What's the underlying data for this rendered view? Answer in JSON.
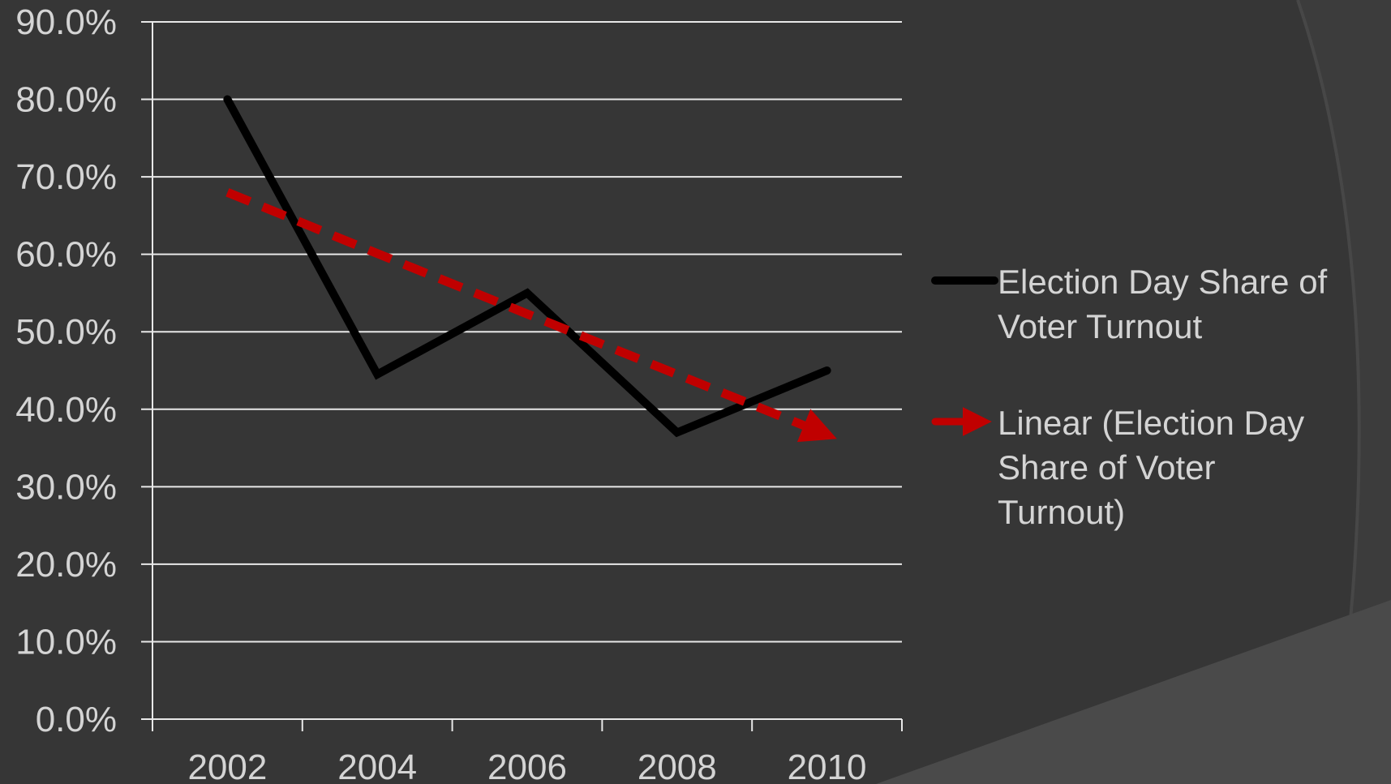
{
  "chart_data": {
    "type": "line",
    "categories": [
      "2002",
      "2004",
      "2006",
      "2008",
      "2010"
    ],
    "y_tick_labels": [
      "0.0%",
      "10.0%",
      "20.0%",
      "30.0%",
      "40.0%",
      "50.0%",
      "60.0%",
      "70.0%",
      "80.0%",
      "90.0%"
    ],
    "ylim": [
      0,
      90
    ],
    "grid": true,
    "legend_position": "right",
    "series": [
      {
        "name": "Election Day Share of Voter Turnout",
        "legend_lines": [
          "Election Day Share of",
          "Voter Turnout"
        ],
        "values": [
          80.0,
          44.5,
          55.0,
          37.0,
          45.0
        ],
        "color": "#000000",
        "style": "solid"
      },
      {
        "name": "Linear (Election Day Share of Voter Turnout)",
        "legend_lines": [
          "Linear (Election Day",
          "Share of Voter",
          "Turnout)"
        ],
        "values": [
          68.0,
          60.1,
          52.3,
          44.5,
          36.7
        ],
        "color": "#c00000",
        "style": "dashed-arrow"
      }
    ]
  },
  "colors": {
    "background": "#363636",
    "text": "#d4d4d4",
    "gridline": "#e8e8e8",
    "decor_arc": "#4a4a4a"
  }
}
